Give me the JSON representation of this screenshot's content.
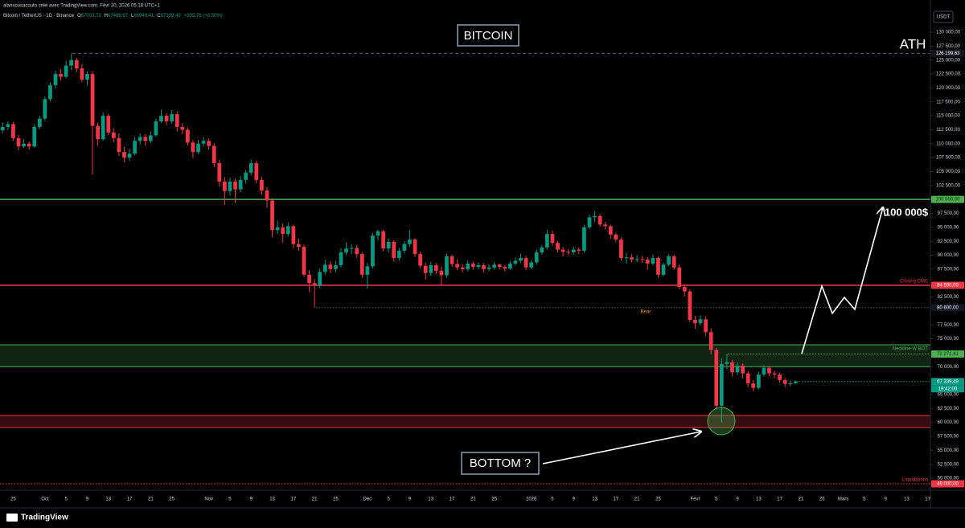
{
  "chart_data": {
    "type": "candlestick",
    "header": "alansousacouto créé avec TradingView.com, Févr 20, 2026 05:18 UTC+1",
    "symbol": "Bitcoin / TetherUS · 1D · Binance",
    "legend_values": [
      "O",
      "67003,73",
      "H",
      "67488,67",
      "L",
      "66949,41",
      "C",
      "67339,49",
      "+335,76 (+0,50%)"
    ],
    "currency": "USDT",
    "brand": "TradingView",
    "annotations": {
      "title": "BITCOIN",
      "ath": "ATH",
      "target": "100 000$",
      "bear": "Bear",
      "bottom": "BOTTOM ?"
    },
    "up_color": "#089981",
    "down_color": "#f23645",
    "grid": false,
    "ylim": [
      47840,
      135770
    ],
    "yticks": [
      {
        "value": 130000,
        "label": "130 000,00"
      },
      {
        "value": 127500,
        "label": "127 500,00"
      },
      {
        "value": 125000,
        "label": "125 000,00"
      },
      {
        "value": 122500,
        "label": "122 500,00"
      },
      {
        "value": 120000,
        "label": "120 000,00"
      },
      {
        "value": 117500,
        "label": "117 500,00"
      },
      {
        "value": 115000,
        "label": "115 000,00"
      },
      {
        "value": 112500,
        "label": "112 500,00"
      },
      {
        "value": 110000,
        "label": "110 000,00"
      },
      {
        "value": 107500,
        "label": "107 500,00"
      },
      {
        "value": 105000,
        "label": "105 000,00"
      },
      {
        "value": 102500,
        "label": "102 500,00"
      },
      {
        "value": 97500,
        "label": "97 500,00"
      },
      {
        "value": 95000,
        "label": "95 000,00"
      },
      {
        "value": 92500,
        "label": "92 500,00"
      },
      {
        "value": 90000,
        "label": "90 000,00"
      },
      {
        "value": 87500,
        "label": "87 500,00"
      },
      {
        "value": 82500,
        "label": "82 500,00"
      },
      {
        "value": 77500,
        "label": "77 500,00"
      },
      {
        "value": 75000,
        "label": "75 000,00"
      },
      {
        "value": 70000,
        "label": "70 000,00"
      },
      {
        "value": 65000,
        "label": "65 000,00"
      },
      {
        "value": 62500,
        "label": "62 500,00"
      },
      {
        "value": 60000,
        "label": "60 000,00"
      },
      {
        "value": 57500,
        "label": "57 500,00"
      },
      {
        "value": 55000,
        "label": "55 000,00"
      },
      {
        "value": 52500,
        "label": "52 500,00"
      },
      {
        "value": 50000,
        "label": "50 000,00"
      }
    ],
    "levels": [
      {
        "value": 126199.63,
        "label": "126 199,63",
        "color": "#5d606b",
        "style": "dashed"
      },
      {
        "value": 100000,
        "label": "100 000,00",
        "color": "#4caf50",
        "style": "solid"
      },
      {
        "value": 84590,
        "label": "84 590,00",
        "color": "#f23645",
        "style": "solid",
        "name": "Closing CME"
      },
      {
        "value": 80600,
        "label": "80 600,00",
        "color": "#5d606b",
        "style": "dotted"
      },
      {
        "value": 72271.41,
        "label": "72 271,41",
        "color": "#4caf50",
        "style": "dotted"
      },
      {
        "value": 67339.49,
        "label": "67 339,49",
        "color": "#089981",
        "style": "dotted",
        "sublabel": "19:42:00"
      },
      {
        "value": 49000,
        "label": "49 000,00",
        "color": "#f23645",
        "style": "dotted",
        "name": "Liquidations"
      }
    ],
    "zones": [
      {
        "top": 73928,
        "bottom": 70000,
        "color": "#4caf50",
        "name": "Neckline W BOT"
      },
      {
        "top": 61250,
        "bottom": 59100,
        "color": "#f23645"
      }
    ],
    "categories": [
      null,
      null,
      "25",
      null,
      null,
      null,
      null,
      null,
      "Oct",
      null,
      null,
      null,
      "5",
      null,
      null,
      null,
      "9",
      null,
      null,
      null,
      "13",
      null,
      null,
      null,
      "17",
      null,
      null,
      null,
      "21",
      null,
      null,
      null,
      "25",
      null,
      null,
      null,
      null,
      null,
      null,
      "Nov",
      null,
      null,
      null,
      "5",
      null,
      null,
      null,
      "9",
      null,
      null,
      null,
      "13",
      null,
      null,
      null,
      "17",
      null,
      null,
      null,
      "21",
      null,
      null,
      null,
      "25",
      null,
      null,
      null,
      null,
      null,
      "Déc",
      null,
      null,
      null,
      "5",
      null,
      null,
      null,
      "9",
      null,
      null,
      null,
      "13",
      null,
      null,
      null,
      "17",
      null,
      null,
      null,
      "21",
      null,
      null,
      null,
      "25",
      null,
      null,
      null,
      null,
      null,
      null,
      "2026",
      null,
      null,
      null,
      "5",
      null,
      null,
      null,
      "9",
      null,
      null,
      null,
      "13",
      null,
      null,
      null,
      "17",
      null,
      null,
      null,
      "21",
      null,
      null,
      null,
      "25",
      null,
      null,
      null,
      null,
      null,
      null,
      "Févr",
      null,
      null,
      null,
      "5",
      null,
      null,
      null,
      "9",
      null,
      null,
      null,
      "13",
      null,
      null,
      null,
      "17",
      null,
      null,
      null,
      "21",
      null,
      null,
      null,
      "25",
      null,
      null,
      null,
      "Mars",
      null,
      null,
      null,
      "5",
      null,
      null,
      null,
      "9",
      null,
      null,
      null,
      "13",
      null,
      null,
      null,
      "17"
    ],
    "ohlc": [
      [
        112400,
        113800,
        111900,
        113000
      ],
      [
        113000,
        114000,
        112500,
        113500
      ],
      [
        113500,
        113900,
        110500,
        111000
      ],
      [
        111000,
        111600,
        108800,
        109500
      ],
      [
        109500,
        110800,
        109200,
        110000
      ],
      [
        110000,
        110400,
        108900,
        109500
      ],
      [
        109500,
        113500,
        109300,
        113000
      ],
      [
        113000,
        115000,
        112600,
        114500
      ],
      [
        114500,
        118500,
        114100,
        118000
      ],
      [
        118000,
        121000,
        117600,
        120500
      ],
      [
        120500,
        123100,
        119900,
        122500
      ],
      [
        122500,
        123400,
        121300,
        122000
      ],
      [
        122000,
        124900,
        121700,
        124000
      ],
      [
        124000,
        126199.63,
        123200,
        125000
      ],
      [
        125000,
        125400,
        122800,
        123500
      ],
      [
        123500,
        124300,
        121000,
        121500
      ],
      [
        121500,
        123000,
        120400,
        122500
      ],
      [
        122500,
        123000,
        104500,
        113200
      ],
      [
        113200,
        113800,
        109600,
        110800
      ],
      [
        110800,
        115600,
        110500,
        115000
      ],
      [
        115000,
        115400,
        111500,
        112000
      ],
      [
        112000,
        112800,
        110300,
        111000
      ],
      [
        111000,
        111900,
        107800,
        108500
      ],
      [
        108500,
        109400,
        106700,
        107500
      ],
      [
        107500,
        109100,
        106900,
        108200
      ],
      [
        108200,
        111200,
        107900,
        110500
      ],
      [
        110500,
        111800,
        109800,
        111200
      ],
      [
        111200,
        111700,
        109600,
        110500
      ],
      [
        110500,
        112200,
        110100,
        111500
      ],
      [
        111500,
        114500,
        111200,
        114000
      ],
      [
        114000,
        116100,
        113700,
        115000
      ],
      [
        115000,
        115500,
        113300,
        114000
      ],
      [
        114000,
        116000,
        113600,
        115300
      ],
      [
        115300,
        115800,
        112200,
        113000
      ],
      [
        113000,
        113600,
        111700,
        112500
      ],
      [
        112500,
        112900,
        109600,
        110200
      ],
      [
        110200,
        110700,
        107400,
        108500
      ],
      [
        108500,
        110600,
        108100,
        110000
      ],
      [
        110000,
        111200,
        109500,
        110500
      ],
      [
        110500,
        110900,
        108900,
        109600
      ],
      [
        109600,
        110100,
        105800,
        106500
      ],
      [
        106500,
        107100,
        102200,
        103200
      ],
      [
        103200,
        104000,
        99000,
        101500
      ],
      [
        101500,
        103900,
        100700,
        103200
      ],
      [
        103200,
        103700,
        99300,
        101800
      ],
      [
        101800,
        104200,
        101300,
        103500
      ],
      [
        103500,
        105300,
        102800,
        104800
      ],
      [
        104800,
        107200,
        104300,
        106500
      ],
      [
        106500,
        107000,
        102900,
        103500
      ],
      [
        103500,
        104100,
        100800,
        101600
      ],
      [
        101600,
        102200,
        98500,
        99800
      ],
      [
        99800,
        100200,
        93200,
        94500
      ],
      [
        94500,
        96200,
        93800,
        95000
      ],
      [
        95000,
        95700,
        92200,
        93800
      ],
      [
        93800,
        95900,
        93300,
        95200
      ],
      [
        95200,
        95500,
        91200,
        92000
      ],
      [
        92000,
        93000,
        90800,
        91500
      ],
      [
        91500,
        91900,
        86100,
        86500
      ],
      [
        86500,
        87300,
        83400,
        85000
      ],
      [
        85000,
        85700,
        80600,
        84500
      ],
      [
        84500,
        87600,
        84100,
        87000
      ],
      [
        87000,
        89200,
        86500,
        88300
      ],
      [
        88300,
        88900,
        86800,
        87500
      ],
      [
        87500,
        89000,
        86900,
        88200
      ],
      [
        88200,
        91300,
        87800,
        90500
      ],
      [
        90500,
        92300,
        90000,
        91200
      ],
      [
        91200,
        92000,
        90200,
        91300
      ],
      [
        91300,
        91800,
        89500,
        90200
      ],
      [
        90200,
        90500,
        85900,
        86500
      ],
      [
        86500,
        88600,
        84000,
        88000
      ],
      [
        88000,
        94000,
        87600,
        93500
      ],
      [
        93500,
        94600,
        92700,
        94300
      ],
      [
        94300,
        94500,
        90700,
        91200
      ],
      [
        91200,
        93000,
        90500,
        92400
      ],
      [
        92400,
        92700,
        88800,
        89500
      ],
      [
        89500,
        91300,
        89000,
        90800
      ],
      [
        90800,
        92500,
        90300,
        92000
      ],
      [
        92000,
        94500,
        91500,
        92800
      ],
      [
        92800,
        93000,
        89700,
        90200
      ],
      [
        90200,
        90600,
        87600,
        88100
      ],
      [
        88100,
        88700,
        85600,
        86800
      ],
      [
        86800,
        88800,
        86300,
        88200
      ],
      [
        88200,
        88600,
        86600,
        87200
      ],
      [
        87200,
        88000,
        84400,
        86400
      ],
      [
        86400,
        90300,
        86000,
        89800
      ],
      [
        89800,
        90100,
        87900,
        88400
      ],
      [
        88400,
        89300,
        87300,
        87800
      ],
      [
        87800,
        88400,
        86900,
        87500
      ],
      [
        87500,
        89100,
        87100,
        88500
      ],
      [
        88500,
        88900,
        87400,
        87900
      ],
      [
        87900,
        88700,
        87500,
        88200
      ],
      [
        88200,
        88600,
        86900,
        87500
      ],
      [
        87500,
        88300,
        87100,
        87800
      ],
      [
        87800,
        88800,
        87400,
        88300
      ],
      [
        88300,
        88500,
        87400,
        87900
      ],
      [
        87900,
        88200,
        87100,
        87600
      ],
      [
        87600,
        89000,
        87300,
        88500
      ],
      [
        88500,
        89600,
        88100,
        89000
      ],
      [
        89000,
        90300,
        88600,
        89500
      ],
      [
        89500,
        89900,
        87300,
        87800
      ],
      [
        87800,
        89100,
        87500,
        88700
      ],
      [
        88700,
        91000,
        88300,
        90500
      ],
      [
        90500,
        91800,
        90100,
        91400
      ],
      [
        91400,
        94600,
        91000,
        93800
      ],
      [
        93800,
        94400,
        91700,
        92200
      ],
      [
        92200,
        92600,
        90500,
        91000
      ],
      [
        91000,
        91500,
        89800,
        90600
      ],
      [
        90600,
        91100,
        90000,
        90500
      ],
      [
        90500,
        91500,
        90100,
        91000
      ],
      [
        91000,
        91400,
        90200,
        90800
      ],
      [
        90800,
        95500,
        90400,
        95000
      ],
      [
        95000,
        97300,
        94700,
        96800
      ],
      [
        96800,
        97900,
        95900,
        97000
      ],
      [
        97000,
        97400,
        95100,
        95500
      ],
      [
        95500,
        96000,
        94600,
        95200
      ],
      [
        95200,
        95500,
        92900,
        93700
      ],
      [
        93700,
        94000,
        92300,
        92800
      ],
      [
        92800,
        93200,
        89000,
        89500
      ],
      [
        89500,
        90400,
        88500,
        89600
      ],
      [
        89600,
        90200,
        88700,
        89200
      ],
      [
        89200,
        90000,
        88800,
        89300
      ],
      [
        89300,
        89900,
        88600,
        89200
      ],
      [
        89200,
        89700,
        87400,
        88500
      ],
      [
        88500,
        90100,
        88200,
        89500
      ],
      [
        89500,
        89800,
        86000,
        86500
      ],
      [
        86500,
        88700,
        86200,
        88300
      ],
      [
        88300,
        90200,
        88000,
        89800
      ],
      [
        89800,
        90100,
        87400,
        87800
      ],
      [
        87800,
        88300,
        83900,
        84300
      ],
      [
        84300,
        84800,
        82600,
        83500
      ],
      [
        83500,
        83900,
        78000,
        78400
      ],
      [
        78400,
        79100,
        76800,
        77800
      ],
      [
        77800,
        79200,
        77400,
        78500
      ],
      [
        78500,
        79000,
        75600,
        76200
      ],
      [
        76200,
        76900,
        72200,
        73000
      ],
      [
        73000,
        73400,
        62500,
        63000
      ],
      [
        63000,
        71500,
        60000,
        70500
      ],
      [
        70500,
        72300,
        69500,
        70800
      ],
      [
        70800,
        71200,
        68200,
        69000
      ],
      [
        69000,
        70800,
        68500,
        70200
      ],
      [
        70200,
        70600,
        67900,
        68800
      ],
      [
        68800,
        69200,
        66300,
        67000
      ],
      [
        67000,
        67600,
        65600,
        66200
      ],
      [
        66200,
        69100,
        65900,
        68600
      ],
      [
        68600,
        70300,
        68200,
        69800
      ],
      [
        69800,
        70100,
        68300,
        68800
      ],
      [
        68800,
        69300,
        68000,
        68600
      ],
      [
        68600,
        69000,
        67100,
        67600
      ],
      [
        67600,
        68000,
        66300,
        66900
      ],
      [
        66900,
        67500,
        66500,
        67003.73
      ],
      [
        67003.73,
        67488.67,
        66949.41,
        67339.49
      ],
      null,
      null,
      null,
      null,
      null,
      null,
      null,
      null,
      null,
      null,
      null,
      null,
      null,
      null,
      null,
      null,
      null,
      null,
      null,
      null,
      null,
      null,
      null,
      null,
      null
    ]
  }
}
